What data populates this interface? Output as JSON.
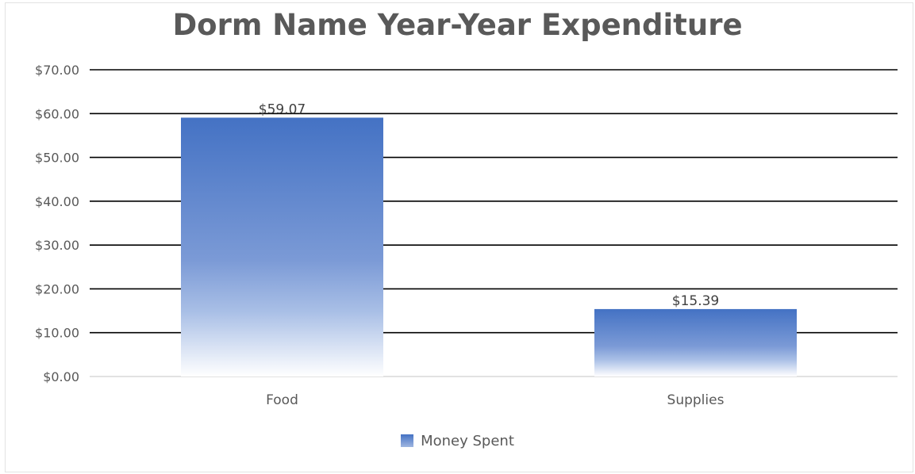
{
  "chart_data": {
    "type": "bar",
    "title": "Dorm Name Year-Year Expenditure",
    "categories": [
      "Food",
      "Supplies"
    ],
    "series": [
      {
        "name": "Money Spent",
        "values": [
          59.07,
          15.39
        ]
      }
    ],
    "data_labels": [
      "$59.07",
      "$15.39"
    ],
    "y_ticks": [
      "$0.00",
      "$10.00",
      "$20.00",
      "$30.00",
      "$40.00",
      "$50.00",
      "$60.00",
      "$70.00"
    ],
    "ylim": [
      0,
      70
    ],
    "grid": true,
    "legend_position": "bottom",
    "bar_color": "#4472c4"
  }
}
